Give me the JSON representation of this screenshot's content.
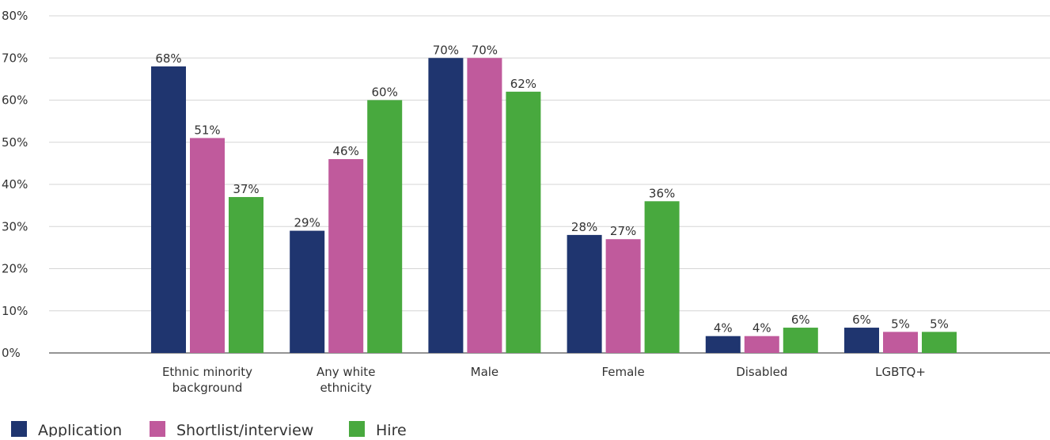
{
  "chart_data": {
    "type": "bar",
    "categories": [
      [
        "Ethnic minority",
        "background"
      ],
      [
        "Any white",
        "ethnicity"
      ],
      [
        "Male"
      ],
      [
        "Female"
      ],
      [
        "Disabled"
      ],
      [
        "LGBTQ+"
      ]
    ],
    "series": [
      {
        "name": "Application",
        "color": "#1f356f",
        "values": [
          68,
          29,
          70,
          28,
          4,
          6
        ]
      },
      {
        "name": "Shortlist/interview",
        "color": "#c05a9c",
        "values": [
          51,
          46,
          70,
          27,
          4,
          5
        ]
      },
      {
        "name": "Hire",
        "color": "#48a93e",
        "values": [
          37,
          60,
          62,
          36,
          6,
          5
        ]
      }
    ],
    "data_label_suffix": "%",
    "ylim": [
      0,
      80
    ],
    "yticks": [
      "0%",
      "10%",
      "20%",
      "30%",
      "40%",
      "50%",
      "60%",
      "70%",
      "80%"
    ],
    "grid": true,
    "legend_position": "bottom-left",
    "title": "",
    "xlabel": "",
    "ylabel": ""
  }
}
